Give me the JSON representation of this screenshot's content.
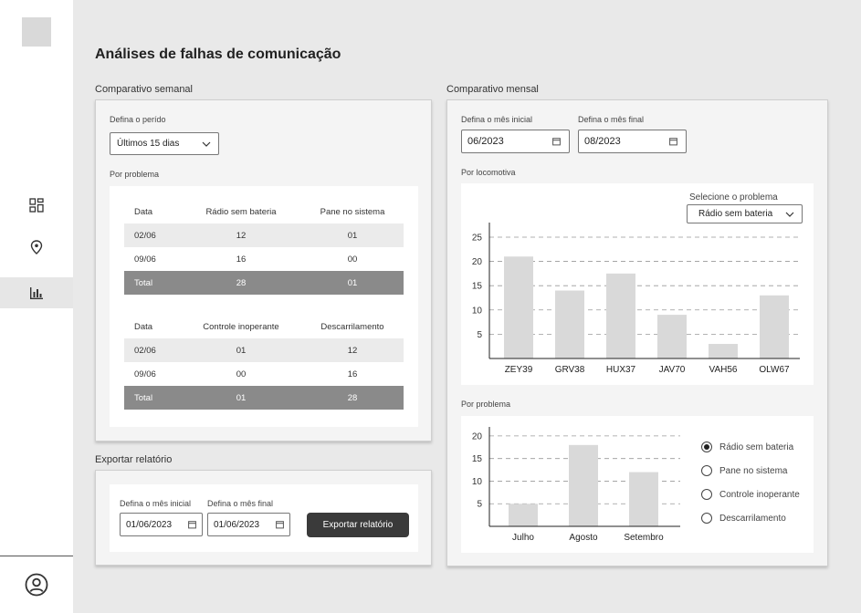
{
  "page": {
    "title": "Análises de falhas de comunicação"
  },
  "sidebar": {
    "items": [
      {
        "name": "dashboard",
        "icon": "dashboard-grid-icon"
      },
      {
        "name": "location",
        "icon": "location-pin-icon"
      },
      {
        "name": "analytics",
        "icon": "bar-chart-icon",
        "active": true
      }
    ],
    "profile_icon": "user-circle-icon"
  },
  "weekly": {
    "section_title": "Comparativo semanal",
    "period_label": "Defina o perído",
    "period_value": "Últimos 15 dias",
    "by_problem_label": "Por problema",
    "table1": {
      "headers": [
        "Data",
        "Rádio sem bateria",
        "Pane no sistema"
      ],
      "rows": [
        [
          "02/06",
          "12",
          "01"
        ],
        [
          "09/06",
          "16",
          "00"
        ]
      ],
      "total": [
        "Total",
        "28",
        "01"
      ]
    },
    "table2": {
      "headers": [
        "Data",
        "Controle inoperante",
        "Descarrilamento"
      ],
      "rows": [
        [
          "02/06",
          "01",
          "12"
        ],
        [
          "09/06",
          "00",
          "16"
        ]
      ],
      "total": [
        "Total",
        "01",
        "28"
      ]
    }
  },
  "export": {
    "section_title": "Exportar relatório",
    "start_label": "Defina o mês inicial",
    "start_value": "01/06/2023",
    "end_label": "Defina o mês final",
    "end_value": "01/06/2023",
    "button_label": "Exportar relatório"
  },
  "monthly": {
    "section_title": "Comparativo mensal",
    "start_label": "Defina o mês inicial",
    "start_value": "06/2023",
    "end_label": "Defina o mês final",
    "end_value": "08/2023",
    "locomotive_label": "Por locomotiva",
    "problem_select_label": "Selecione o problema",
    "problem_select_value": "Rádio sem bateria",
    "by_problem_label": "Por problema",
    "radio_options": [
      "Rádio sem bateria",
      "Pane no sistema",
      "Controle inoperante",
      "Descarrilamento"
    ],
    "radio_selected": 0
  },
  "chart_data": [
    {
      "type": "bar",
      "categories": [
        "ZEY39",
        "GRV38",
        "HUX37",
        "JAV70",
        "VAH56",
        "OLW67"
      ],
      "values": [
        21,
        14,
        17.5,
        9,
        3,
        13
      ],
      "yticks": [
        5,
        10,
        15,
        20,
        25
      ],
      "ylim": [
        0,
        28
      ],
      "grid": true,
      "bar_color": "#d9d9d9"
    },
    {
      "type": "bar",
      "categories": [
        "Julho",
        "Agosto",
        "Setembro"
      ],
      "values": [
        5,
        18,
        12
      ],
      "yticks": [
        5,
        10,
        15,
        20
      ],
      "ylim": [
        0,
        22
      ],
      "grid": true,
      "bar_color": "#d9d9d9"
    }
  ]
}
